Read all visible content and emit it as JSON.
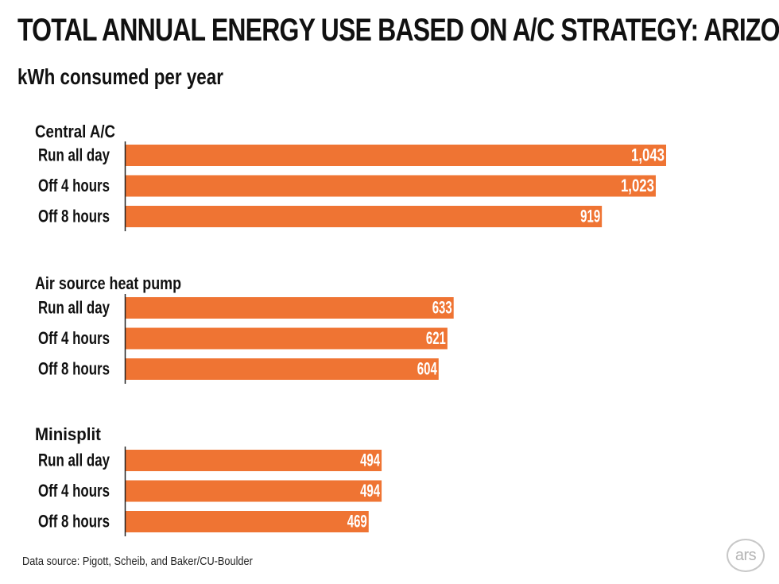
{
  "title": "TOTAL ANNUAL ENERGY USE BASED ON A/C STRATEGY: ARIZONA",
  "subtitle": "kWh consumed per year",
  "source": "Data source: Pigott, Scheib, and Baker/CU-Boulder",
  "logo": "ars",
  "colors": {
    "bar": "#ef7433",
    "bar_text": "#ffffff",
    "text": "#111111",
    "axis": "#222222"
  },
  "chart_data": {
    "type": "bar",
    "orientation": "horizontal",
    "title": "TOTAL ANNUAL ENERGY USE BASED ON A/C STRATEGY: ARIZONA",
    "subtitle": "kWh consumed per year",
    "unit": "kWh",
    "xlim": [
      0,
      1100
    ],
    "groups": [
      {
        "name": "Central A/C",
        "categories": [
          "Run all day",
          "Off 4 hours",
          "Off 8 hours"
        ],
        "values": [
          1043,
          1023,
          919
        ],
        "labels": [
          "1,043",
          "1,023",
          "919"
        ]
      },
      {
        "name": "Air source heat pump",
        "categories": [
          "Run all day",
          "Off 4 hours",
          "Off 8 hours"
        ],
        "values": [
          633,
          621,
          604
        ],
        "labels": [
          "633",
          "621",
          "604"
        ]
      },
      {
        "name": "Minisplit",
        "categories": [
          "Run all day",
          "Off 4 hours",
          "Off 8 hours"
        ],
        "values": [
          494,
          494,
          469
        ],
        "labels": [
          "494",
          "494",
          "469"
        ]
      }
    ]
  }
}
